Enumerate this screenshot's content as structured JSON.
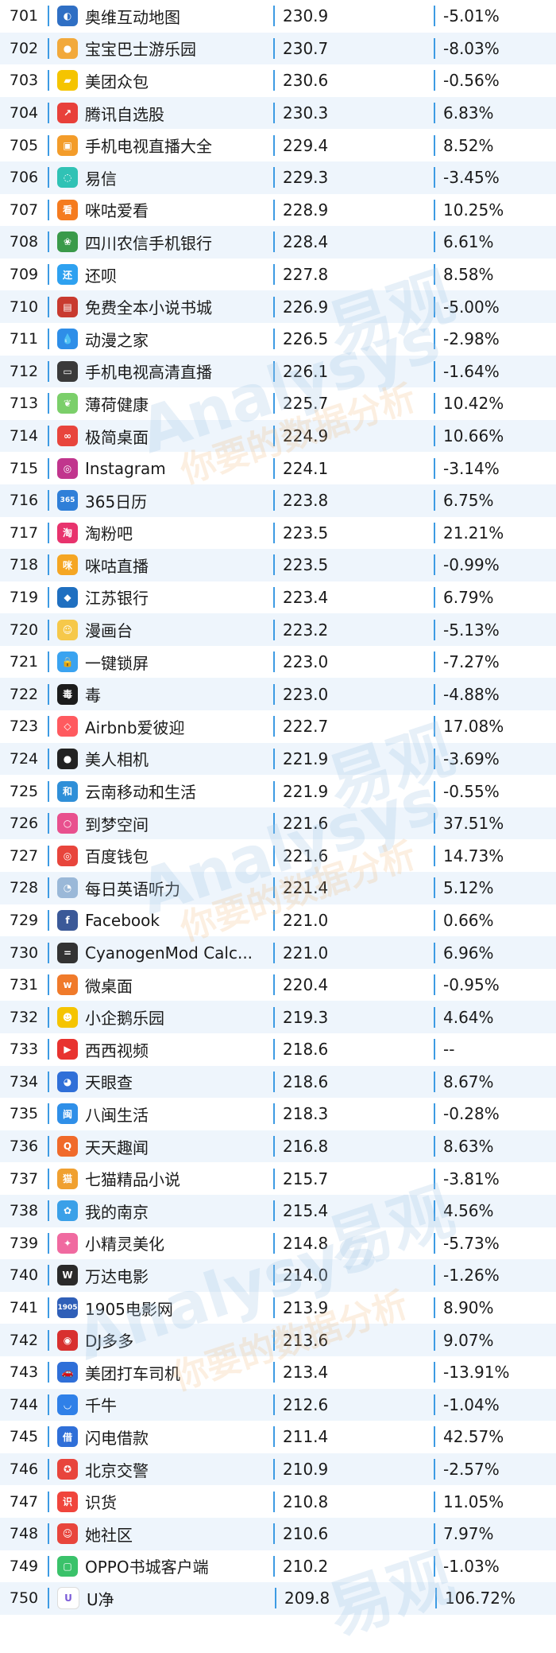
{
  "watermark": {
    "brand": "Analysys",
    "cn": "易观",
    "tagline": "你要的数据分析"
  },
  "rows": [
    {
      "rank": "701",
      "name": "奥维互动地图",
      "value": "230.9",
      "change": "-5.01%",
      "icon": "map-icon",
      "color": "#2f6fc4",
      "glyph": "◐"
    },
    {
      "rank": "702",
      "name": "宝宝巴士游乐园",
      "value": "230.7",
      "change": "-8.03%",
      "icon": "bus-icon",
      "color": "#f2a93b",
      "glyph": "●"
    },
    {
      "rank": "703",
      "name": "美团众包",
      "value": "230.6",
      "change": "-0.56%",
      "icon": "package-icon",
      "color": "#f5c400",
      "glyph": "▰"
    },
    {
      "rank": "704",
      "name": "腾讯自选股",
      "value": "230.3",
      "change": "6.83%",
      "icon": "stock-chart-icon",
      "color": "#e8403a",
      "glyph": "↗"
    },
    {
      "rank": "705",
      "name": "手机电视直播大全",
      "value": "229.4",
      "change": "8.52%",
      "icon": "tv-icon",
      "color": "#f39c2a",
      "glyph": "▣"
    },
    {
      "rank": "706",
      "name": "易信",
      "value": "229.3",
      "change": "-3.45%",
      "icon": "chat-icon",
      "color": "#30c2b5",
      "glyph": "◌"
    },
    {
      "rank": "707",
      "name": "咪咕爱看",
      "value": "228.9",
      "change": "10.25%",
      "icon": "video-icon",
      "color": "#f57b1f",
      "glyph": "看"
    },
    {
      "rank": "708",
      "name": "四川农信手机银行",
      "value": "228.4",
      "change": "6.61%",
      "icon": "bank-icon",
      "color": "#3a9a4a",
      "glyph": "❀"
    },
    {
      "rank": "709",
      "name": "还呗",
      "value": "227.8",
      "change": "8.58%",
      "icon": "loan-icon",
      "color": "#2ea1f0",
      "glyph": "还"
    },
    {
      "rank": "710",
      "name": "免费全本小说书城",
      "value": "226.9",
      "change": "-5.00%",
      "icon": "book-icon",
      "color": "#c83a2f",
      "glyph": "▤"
    },
    {
      "rank": "711",
      "name": "动漫之家",
      "value": "226.5",
      "change": "-2.98%",
      "icon": "drop-icon",
      "color": "#2e8ee8",
      "glyph": "💧"
    },
    {
      "rank": "712",
      "name": "手机电视高清直播",
      "value": "226.1",
      "change": "-1.64%",
      "icon": "tv-icon",
      "color": "#3a3a3a",
      "glyph": "▭"
    },
    {
      "rank": "713",
      "name": "薄荷健康",
      "value": "225.7",
      "change": "10.42%",
      "icon": "leaf-icon",
      "color": "#7bcf6a",
      "glyph": "❦"
    },
    {
      "rank": "714",
      "name": "极简桌面",
      "value": "224.9",
      "change": "10.66%",
      "icon": "launcher-icon",
      "color": "#e8453c",
      "glyph": "∞"
    },
    {
      "rank": "715",
      "name": "Instagram",
      "value": "224.1",
      "change": "-3.14%",
      "icon": "camera-icon",
      "color": "#c1358d",
      "glyph": "◎"
    },
    {
      "rank": "716",
      "name": "365日历",
      "value": "223.8",
      "change": "6.75%",
      "icon": "calendar-icon",
      "color": "#2f7fd8",
      "glyph": "365"
    },
    {
      "rank": "717",
      "name": "淘粉吧",
      "value": "223.5",
      "change": "21.21%",
      "icon": "shopping-icon",
      "color": "#e8336d",
      "glyph": "淘"
    },
    {
      "rank": "718",
      "name": "咪咕直播",
      "value": "223.5",
      "change": "-0.99%",
      "icon": "live-icon",
      "color": "#f5a623",
      "glyph": "咪"
    },
    {
      "rank": "719",
      "name": "江苏银行",
      "value": "223.4",
      "change": "6.79%",
      "icon": "bank-icon",
      "color": "#1f6fc0",
      "glyph": "◆"
    },
    {
      "rank": "720",
      "name": "漫画台",
      "value": "223.2",
      "change": "-5.13%",
      "icon": "comic-icon",
      "color": "#f6c84a",
      "glyph": "☺"
    },
    {
      "rank": "721",
      "name": "一键锁屏",
      "value": "223.0",
      "change": "-7.27%",
      "icon": "lock-icon",
      "color": "#3aa3f0",
      "glyph": "🔒"
    },
    {
      "rank": "722",
      "name": "毒",
      "value": "223.0",
      "change": "-4.88%",
      "icon": "du-icon",
      "color": "#1c1c1c",
      "glyph": "毒"
    },
    {
      "rank": "723",
      "name": "Airbnb爱彼迎",
      "value": "222.7",
      "change": "17.08%",
      "icon": "airbnb-icon",
      "color": "#ff5a5f",
      "glyph": "◇"
    },
    {
      "rank": "724",
      "name": "美人相机",
      "value": "221.9",
      "change": "-3.69%",
      "icon": "lens-icon",
      "color": "#222222",
      "glyph": "●"
    },
    {
      "rank": "725",
      "name": "云南移动和生活",
      "value": "221.9",
      "change": "-0.55%",
      "icon": "mobile-icon",
      "color": "#2f8fd8",
      "glyph": "和"
    },
    {
      "rank": "726",
      "name": "到梦空间",
      "value": "221.6",
      "change": "37.51%",
      "icon": "ring-icon",
      "color": "#e8508e",
      "glyph": "○"
    },
    {
      "rank": "727",
      "name": "百度钱包",
      "value": "221.6",
      "change": "14.73%",
      "icon": "wallet-icon",
      "color": "#e8453c",
      "glyph": "◎"
    },
    {
      "rank": "728",
      "name": "每日英语听力",
      "value": "221.4",
      "change": "5.12%",
      "icon": "listen-icon",
      "color": "#9ab8d8",
      "glyph": "◔"
    },
    {
      "rank": "729",
      "name": "Facebook",
      "value": "221.0",
      "change": "0.66%",
      "icon": "facebook-icon",
      "color": "#3b5998",
      "glyph": "f"
    },
    {
      "rank": "730",
      "name": "CyanogenMod Calc...",
      "value": "221.0",
      "change": "6.96%",
      "icon": "calculator-icon",
      "color": "#333333",
      "glyph": "="
    },
    {
      "rank": "731",
      "name": "微桌面",
      "value": "220.4",
      "change": "-0.95%",
      "icon": "desktop-icon",
      "color": "#f07a2a",
      "glyph": "w"
    },
    {
      "rank": "732",
      "name": "小企鹅乐园",
      "value": "219.3",
      "change": "4.64%",
      "icon": "penguin-icon",
      "color": "#f5c400",
      "glyph": "☻"
    },
    {
      "rank": "733",
      "name": "西西视频",
      "value": "218.6",
      "change": "--",
      "icon": "play-icon",
      "color": "#e8332f",
      "glyph": "▶"
    },
    {
      "rank": "734",
      "name": "天眼查",
      "value": "218.6",
      "change": "8.67%",
      "icon": "eye-icon",
      "color": "#2f6fd8",
      "glyph": "◕"
    },
    {
      "rank": "735",
      "name": "八闽生活",
      "value": "218.3",
      "change": "-0.28%",
      "icon": "life-icon",
      "color": "#2f8fe8",
      "glyph": "闽"
    },
    {
      "rank": "736",
      "name": "天天趣闻",
      "value": "216.8",
      "change": "8.63%",
      "icon": "news-icon",
      "color": "#f06a2a",
      "glyph": "Q"
    },
    {
      "rank": "737",
      "name": "七猫精品小说",
      "value": "215.7",
      "change": "-3.81%",
      "icon": "cat-icon",
      "color": "#f0a030",
      "glyph": "猫"
    },
    {
      "rank": "738",
      "name": "我的南京",
      "value": "215.4",
      "change": "4.56%",
      "icon": "city-icon",
      "color": "#3aa0e8",
      "glyph": "✿"
    },
    {
      "rank": "739",
      "name": "小精灵美化",
      "value": "214.8",
      "change": "-5.73%",
      "icon": "sprite-icon",
      "color": "#f06aa0",
      "glyph": "✦"
    },
    {
      "rank": "740",
      "name": "万达电影",
      "value": "214.0",
      "change": "-1.26%",
      "icon": "movie-icon",
      "color": "#2a2a2a",
      "glyph": "W"
    },
    {
      "rank": "741",
      "name": "1905电影网",
      "value": "213.9",
      "change": "8.90%",
      "icon": "film-icon",
      "color": "#2f5fb8",
      "glyph": "1905"
    },
    {
      "rank": "742",
      "name": "DJ多多",
      "value": "213.6",
      "change": "9.07%",
      "icon": "vinyl-icon",
      "color": "#d8302f",
      "glyph": "◉"
    },
    {
      "rank": "743",
      "name": "美团打车司机",
      "value": "213.4",
      "change": "-13.91%",
      "icon": "car-icon",
      "color": "#2f6fd8",
      "glyph": "🚗"
    },
    {
      "rank": "744",
      "name": "千牛",
      "value": "212.6",
      "change": "-1.04%",
      "icon": "ox-icon",
      "color": "#2f80e8",
      "glyph": "◡"
    },
    {
      "rank": "745",
      "name": "闪电借款",
      "value": "211.4",
      "change": "42.57%",
      "icon": "loan-icon",
      "color": "#2f6fd8",
      "glyph": "借"
    },
    {
      "rank": "746",
      "name": "北京交警",
      "value": "210.9",
      "change": "-2.57%",
      "icon": "police-icon",
      "color": "#e8453c",
      "glyph": "✪"
    },
    {
      "rank": "747",
      "name": "识货",
      "value": "210.8",
      "change": "11.05%",
      "icon": "shopping-icon",
      "color": "#f0453c",
      "glyph": "识"
    },
    {
      "rank": "748",
      "name": "她社区",
      "value": "210.6",
      "change": "7.97%",
      "icon": "community-icon",
      "color": "#e8453c",
      "glyph": "☺"
    },
    {
      "rank": "749",
      "name": "OPPO书城客户端",
      "value": "210.2",
      "change": "-1.03%",
      "icon": "reader-icon",
      "color": "#3ac26a",
      "glyph": "▢"
    },
    {
      "rank": "750",
      "name": "U净",
      "value": "209.8",
      "change": "106.72%",
      "icon": "clean-icon",
      "color": "#ffffff",
      "glyph": "U",
      "glyph_color": "#7a5ad8"
    }
  ]
}
